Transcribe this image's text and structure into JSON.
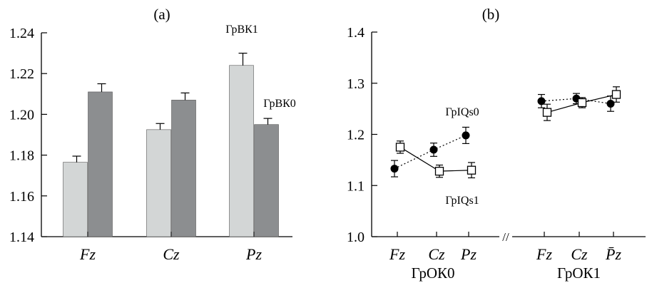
{
  "chart_data": [
    {
      "panel_label": "(a)",
      "type": "bar",
      "categories": [
        "Fz",
        "Cz",
        "Pz"
      ],
      "ylim": [
        1.14,
        1.24
      ],
      "yticks": [
        "1.14",
        "1.16",
        "1.18",
        "1.20",
        "1.22",
        "1.24"
      ],
      "series": [
        {
          "name": "ГрВК1",
          "color": "#d3d6d6",
          "values": [
            1.1765,
            1.1925,
            1.224
          ],
          "errors": [
            0.003,
            0.003,
            0.006
          ]
        },
        {
          "name": "ГрВК0",
          "color": "#8c8e90",
          "values": [
            1.211,
            1.207,
            1.195
          ],
          "errors": [
            0.004,
            0.0035,
            0.003
          ]
        }
      ]
    },
    {
      "panel_label": "(b)",
      "type": "line",
      "ylim": [
        1.0,
        1.4
      ],
      "yticks": [
        "1.0",
        "1.1",
        "1.2",
        "1.3",
        "1.4"
      ],
      "groups": [
        {
          "name": "ГрОК0",
          "categories": [
            "Fz",
            "Cz",
            "Pz"
          ]
        },
        {
          "name": "ГрОК1",
          "categories": [
            "Fz",
            "Cz",
            "P̄z"
          ]
        }
      ],
      "axis_break": "//",
      "series": [
        {
          "name": "ГрIQs0",
          "marker": "filled-circle",
          "line": "dotted",
          "values": [
            [
              1.133,
              1.17,
              1.198
            ],
            [
              1.265,
              1.27,
              1.26
            ]
          ],
          "errors": [
            [
              0.016,
              0.013,
              0.016
            ],
            [
              0.013,
              0.01,
              0.015
            ]
          ]
        },
        {
          "name": "ГрIQs1",
          "marker": "open-square",
          "line": "solid",
          "values": [
            [
              1.175,
              1.128,
              1.13
            ],
            [
              1.243,
              1.262,
              1.278
            ]
          ],
          "errors": [
            [
              0.012,
              0.012,
              0.015
            ],
            [
              0.016,
              0.01,
              0.015
            ]
          ]
        }
      ]
    }
  ]
}
